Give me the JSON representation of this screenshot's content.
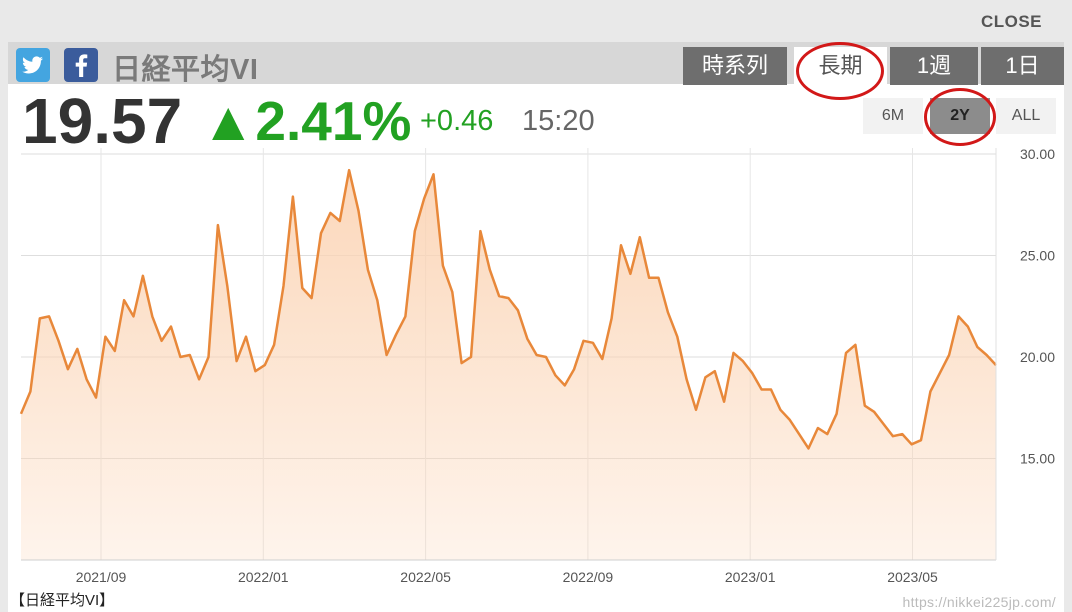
{
  "close_label": "CLOSE",
  "title": "日経平均VI",
  "tabs": [
    {
      "label": "時系列",
      "active": false
    },
    {
      "label": "長期",
      "active": true
    },
    {
      "label": "1週",
      "active": false
    },
    {
      "label": "1日",
      "active": false
    }
  ],
  "quote": {
    "value": "19.57",
    "change_pct": "▲2.41%",
    "change": "+0.46",
    "time": "15:20"
  },
  "ranges": [
    {
      "label": "6M",
      "active": false
    },
    {
      "label": "2Y",
      "active": true
    },
    {
      "label": "ALL",
      "active": false
    }
  ],
  "footer_label": "【日経平均VI】",
  "watermark": "https://nikkei225jp.com/",
  "colors": {
    "line": "#e8883a",
    "fill": "#fbd3b3",
    "up": "#22a122",
    "highlight": "#d21818"
  },
  "chart_data": {
    "type": "area",
    "y_ticks": [
      "30.00",
      "25.00",
      "20.00",
      "15.00"
    ],
    "ylim": [
      10,
      30
    ],
    "x_ticks": [
      "2021/09",
      "2022/01",
      "2022/05",
      "2022/09",
      "2023/01",
      "2023/05"
    ],
    "grid": true,
    "values": [
      17.2,
      18.3,
      21.9,
      22.0,
      20.8,
      19.4,
      20.4,
      18.9,
      18.0,
      21.0,
      20.3,
      22.8,
      22.0,
      24.0,
      22.0,
      20.8,
      21.5,
      20.0,
      20.1,
      18.9,
      20.0,
      26.5,
      23.5,
      19.8,
      21.0,
      19.3,
      19.6,
      20.6,
      23.5,
      27.9,
      23.4,
      22.9,
      26.1,
      27.1,
      26.7,
      29.2,
      27.2,
      24.3,
      22.8,
      20.1,
      21.1,
      22.0,
      26.2,
      27.8,
      29.0,
      24.5,
      23.2,
      19.7,
      20.0,
      26.2,
      24.3,
      23.0,
      22.9,
      22.3,
      20.9,
      20.1,
      20.0,
      19.1,
      18.6,
      19.4,
      20.8,
      20.7,
      19.9,
      21.9,
      25.5,
      24.1,
      25.9,
      23.9,
      23.9,
      22.2,
      21.0,
      18.9,
      17.4,
      19.0,
      19.3,
      17.8,
      20.2,
      19.8,
      19.2,
      18.4,
      18.4,
      17.4,
      16.9,
      16.2,
      15.5,
      16.5,
      16.2,
      17.2,
      20.2,
      20.6,
      17.6,
      17.3,
      16.7,
      16.1,
      16.2,
      15.7,
      15.9,
      18.3,
      19.2,
      20.1,
      22.0,
      21.5,
      20.5,
      20.1,
      19.6
    ]
  }
}
